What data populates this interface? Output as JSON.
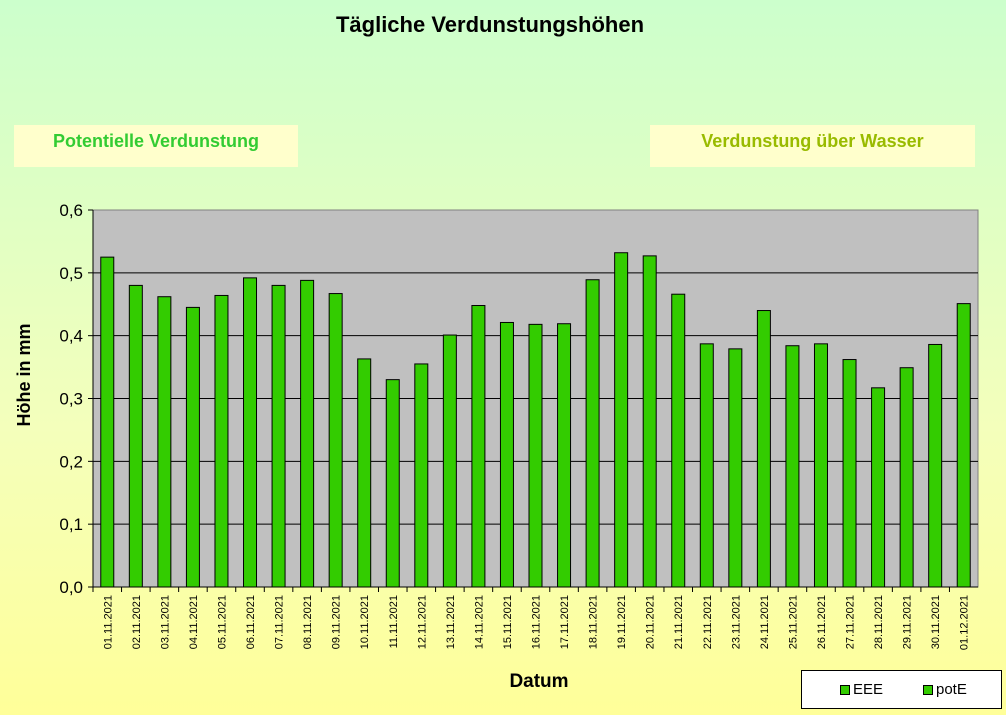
{
  "chart_data": {
    "type": "bar",
    "title": "Tägliche Verdunstungshöhen",
    "xlabel": "Datum",
    "ylabel": "Höhe in mm",
    "ylim": [
      0,
      0.6
    ],
    "yticks": [
      "0,0",
      "0,1",
      "0,2",
      "0,3",
      "0,4",
      "0,5",
      "0,6"
    ],
    "grid": true,
    "legend_position": "bottom-right",
    "colors": {
      "bar": "#33cc00",
      "plot_bg": "#c0c0c0"
    },
    "categories": [
      "01.11.2021",
      "02.11.2021",
      "03.11.2021",
      "04.11.2021",
      "05.11.2021",
      "06.11.2021",
      "07.11.2021",
      "08.11.2021",
      "09.11.2021",
      "10.11.2021",
      "11.11.2021",
      "12.11.2021",
      "13.11.2021",
      "14.11.2021",
      "15.11.2021",
      "16.11.2021",
      "17.11.2021",
      "18.11.2021",
      "19.11.2021",
      "20.11.2021",
      "21.11.2021",
      "22.11.2021",
      "23.11.2021",
      "24.11.2021",
      "25.11.2021",
      "26.11.2021",
      "27.11.2021",
      "28.11.2021",
      "29.11.2021",
      "30.11.2021",
      "01.12.2021"
    ],
    "series": [
      {
        "name": "potE",
        "values": [
          0.525,
          0.48,
          0.462,
          0.445,
          0.464,
          0.492,
          0.48,
          0.488,
          0.467,
          0.363,
          0.33,
          0.355,
          0.401,
          0.448,
          0.421,
          0.418,
          0.419,
          0.489,
          0.532,
          0.527,
          0.466,
          0.387,
          0.379,
          0.44,
          0.384,
          0.387,
          0.362,
          0.317,
          0.349,
          0.386,
          0.451
        ]
      }
    ],
    "legend": [
      "EEE",
      "potE"
    ]
  },
  "panels": {
    "left": "Potentielle Verdunstung",
    "right": "Verdunstung über Wasser"
  }
}
